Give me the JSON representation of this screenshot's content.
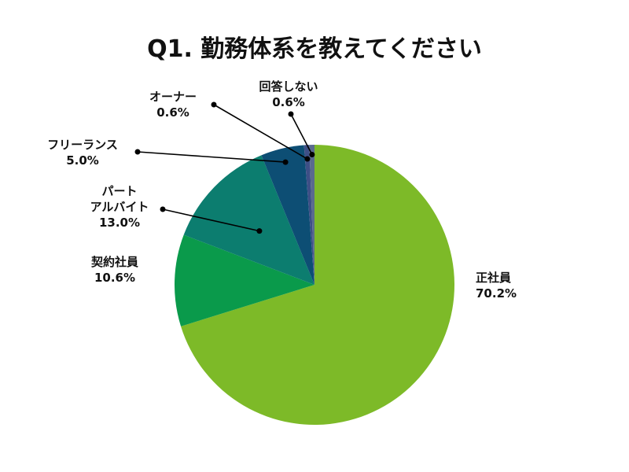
{
  "chart_data": {
    "type": "pie",
    "title": "Q1. 勤務体系を教えてください",
    "start_angle_deg": 0,
    "direction": "clockwise",
    "slices": [
      {
        "label": "正社員",
        "value_label": "70.2%",
        "value": 70.2,
        "color": "#7dba28"
      },
      {
        "label": "契約社員",
        "value_label": "10.6%",
        "value": 10.6,
        "color": "#0a9a4b"
      },
      {
        "label_lines": [
          "パート",
          "アルバイト"
        ],
        "value_label": "13.0%",
        "value": 13.0,
        "color": "#0c7d6f"
      },
      {
        "label": "フリーランス",
        "value_label": "5.0%",
        "value": 5.0,
        "color": "#0d4e74"
      },
      {
        "label": "オーナー",
        "value_label": "0.6%",
        "value": 0.6,
        "color": "#3e4f86"
      },
      {
        "label": "回答しない",
        "value_label": "0.6%",
        "value": 0.6,
        "color": "#5a6a8e"
      }
    ]
  }
}
